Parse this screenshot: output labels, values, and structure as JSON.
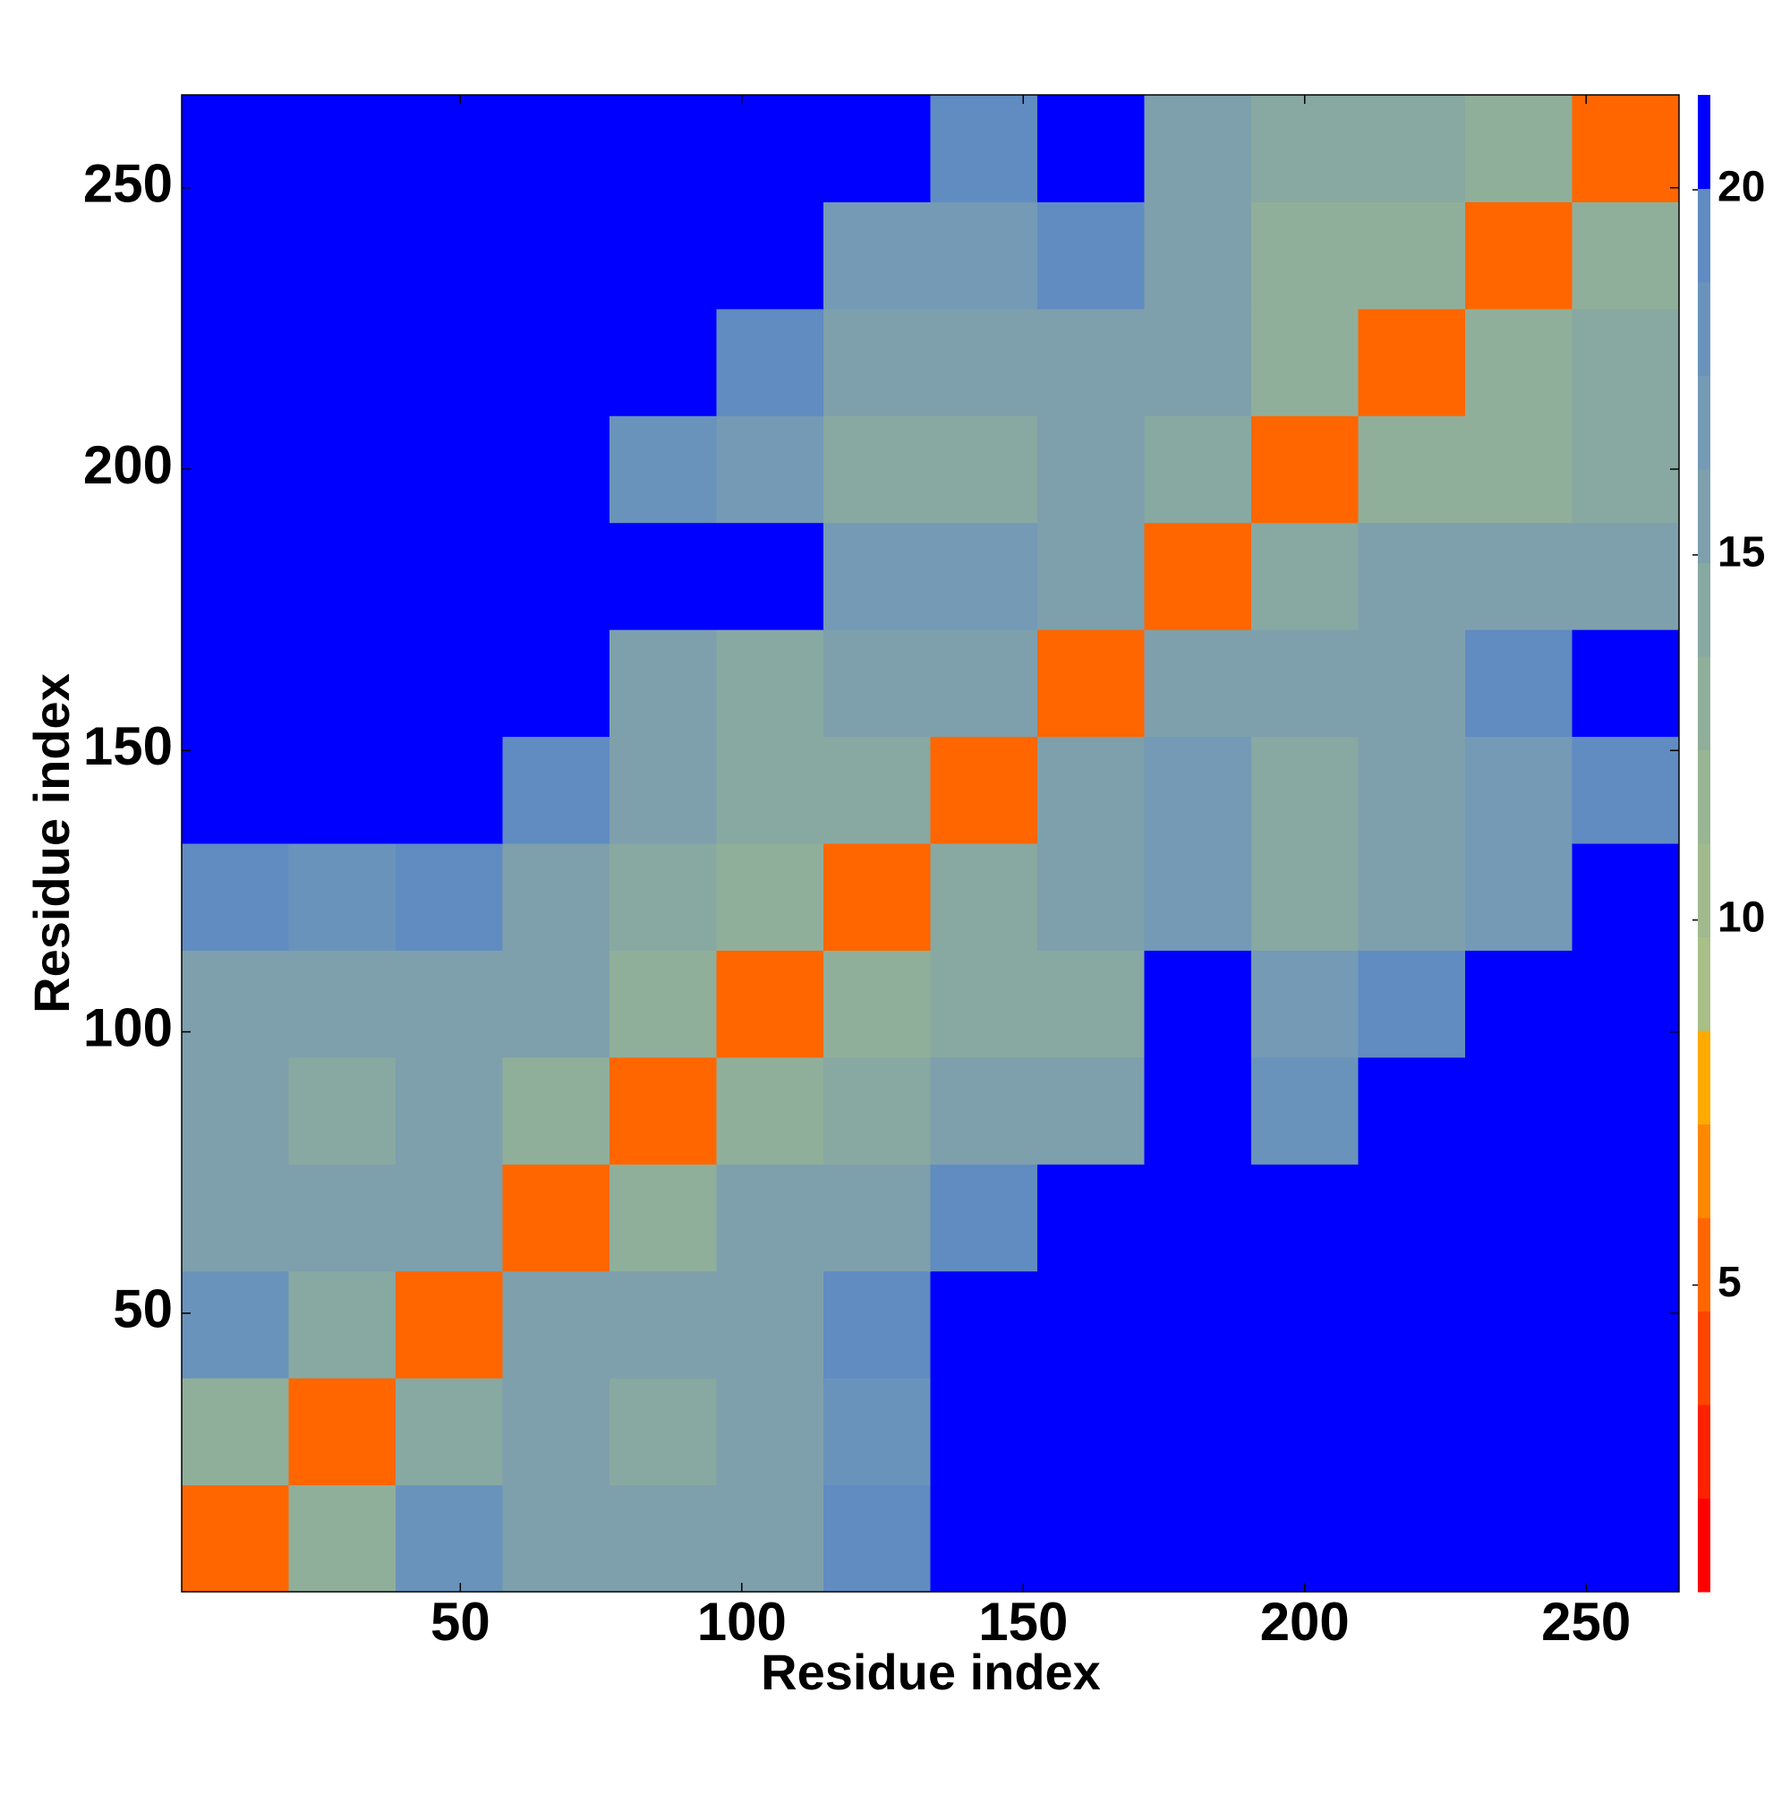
{
  "chart_data": {
    "type": "heatmap",
    "x_label": "Residue index",
    "y_label": "Residue index",
    "bins": [
      0.5,
      19.5,
      38.5,
      57.5,
      76.5,
      95.5,
      114.5,
      133.5,
      152.5,
      171.5,
      190.5,
      209.5,
      228.5,
      247.5,
      266.5
    ],
    "values": [
      [
        5,
        13,
        18,
        15,
        15,
        16,
        19,
        21,
        21,
        21,
        21,
        21,
        21,
        21
      ],
      [
        13,
        5,
        14,
        15,
        14,
        15,
        18,
        21,
        21,
        21,
        21,
        21,
        21,
        21
      ],
      [
        18,
        14,
        5,
        16,
        15,
        15,
        19,
        21,
        21,
        21,
        21,
        21,
        21,
        21
      ],
      [
        15,
        15,
        16,
        5,
        13,
        15,
        16,
        19,
        21,
        21,
        21,
        21,
        21,
        21
      ],
      [
        15,
        14,
        15,
        13,
        5,
        13,
        14,
        15,
        16,
        21,
        18,
        21,
        21,
        21
      ],
      [
        16,
        15,
        15,
        15,
        13,
        5,
        13,
        14,
        14,
        21,
        17,
        19,
        21,
        21
      ],
      [
        19,
        18,
        19,
        16,
        14,
        13,
        5,
        14,
        15,
        17,
        14,
        15,
        17,
        21
      ],
      [
        21,
        21,
        21,
        19,
        15,
        14,
        14,
        5,
        16,
        17,
        14,
        15,
        17,
        19
      ],
      [
        21,
        21,
        21,
        21,
        16,
        14,
        15,
        16,
        5,
        16,
        15,
        16,
        19,
        21
      ],
      [
        21,
        21,
        21,
        21,
        21,
        21,
        17,
        17,
        16,
        5,
        14,
        15,
        15,
        16
      ],
      [
        21,
        21,
        21,
        21,
        18,
        17,
        14,
        14,
        15,
        14,
        5,
        13,
        13,
        14
      ],
      [
        21,
        21,
        21,
        21,
        21,
        19,
        15,
        15,
        16,
        15,
        13,
        5,
        13,
        14
      ],
      [
        21,
        21,
        21,
        21,
        21,
        21,
        17,
        17,
        19,
        15,
        13,
        13,
        5,
        13
      ],
      [
        21,
        21,
        21,
        21,
        21,
        21,
        21,
        19,
        21,
        16,
        14,
        14,
        13,
        5
      ]
    ],
    "xlim": [
      0.5,
      266.5
    ],
    "ylim": [
      0.5,
      266.5
    ],
    "xticks": [
      50,
      100,
      150,
      200,
      250
    ],
    "yticks": [
      50,
      100,
      150,
      200,
      250
    ],
    "clim": [
      0.8,
      21.3
    ],
    "cticks": [
      5,
      10,
      15,
      20
    ],
    "colors": [
      "#ff0000",
      "#ff2200",
      "#ff4400",
      "#ff6600",
      "#ff8800",
      "#ffaa00",
      "#a8bf88",
      "#a0ba8e",
      "#98b594",
      "#90af9a",
      "#88a8a2",
      "#7ea0ac",
      "#749ab5",
      "#6a93bc",
      "#608cc2",
      "#0000ff"
    ]
  }
}
